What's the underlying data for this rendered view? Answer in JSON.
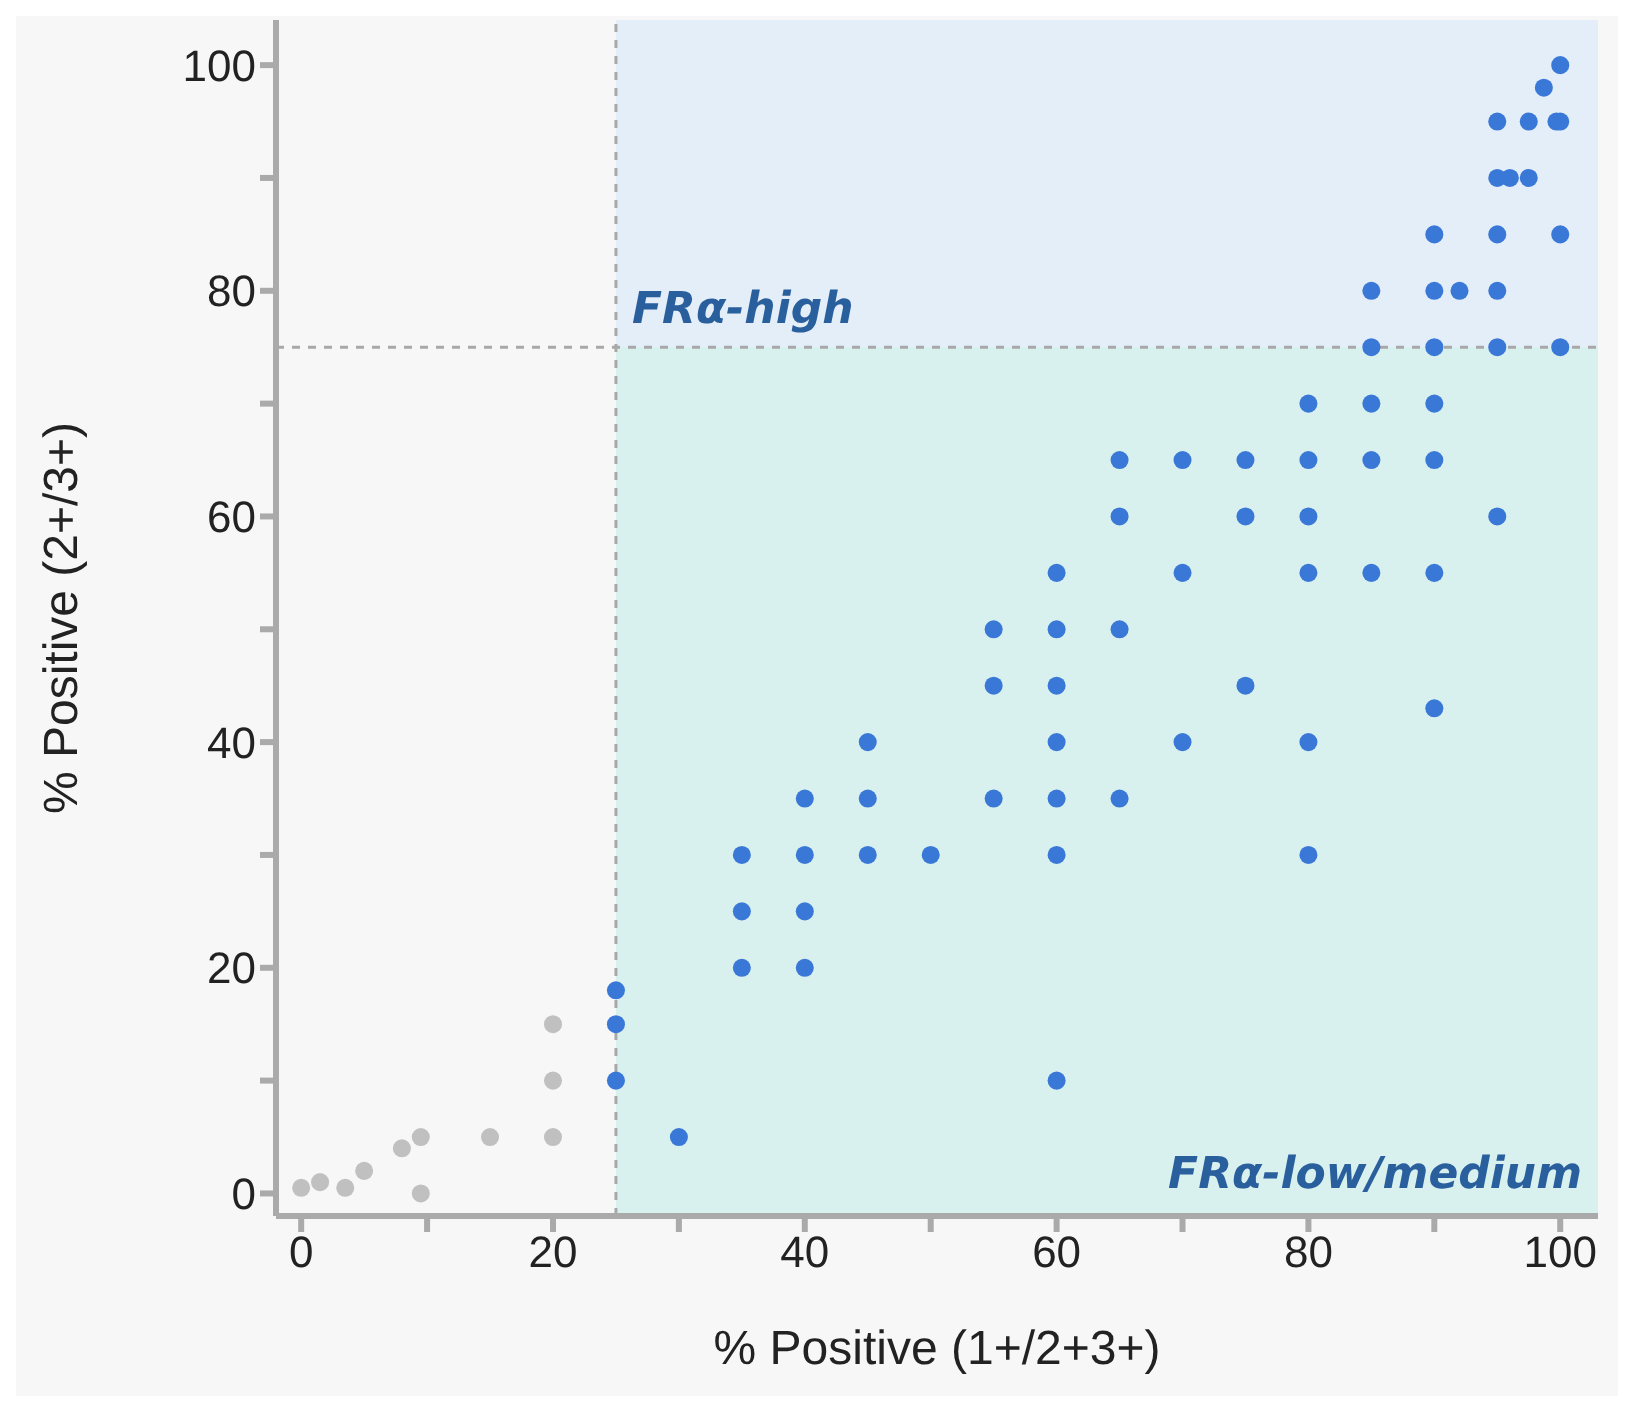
{
  "chart_data": {
    "type": "scatter",
    "xlabel": "% Positive (1+/2+3+)",
    "ylabel": "% Positive (2+/3+)",
    "xlim": [
      -2,
      103
    ],
    "ylim": [
      -2,
      104
    ],
    "xticks": [
      0,
      {
        "value": 10,
        "label": null
      },
      20,
      {
        "value": 30,
        "label": null
      },
      40,
      {
        "value": 50,
        "label": null
      },
      60,
      {
        "value": 70,
        "label": null
      },
      80,
      {
        "value": 90,
        "label": null
      },
      100
    ],
    "yticks": [
      0,
      {
        "value": 10,
        "label": null
      },
      20,
      {
        "value": 30,
        "label": null
      },
      40,
      {
        "value": 50,
        "label": null
      },
      60,
      {
        "value": 70,
        "label": null
      },
      80,
      {
        "value": 90,
        "label": null
      },
      100
    ],
    "grid": false,
    "legend": false,
    "marker": "circle",
    "series": [
      {
        "color": "#c0c0c0",
        "x": [
          0,
          1.5,
          3.5,
          5,
          8,
          9.5,
          9.5,
          15,
          20,
          20,
          20
        ],
        "values": [
          0.5,
          1,
          0.5,
          2,
          4,
          5,
          0,
          5,
          5,
          10,
          15
        ]
      },
      {
        "color": "#3a78d8",
        "x": [
          25,
          25,
          25,
          30,
          35,
          35,
          35,
          40,
          40,
          40,
          40,
          45,
          45,
          45,
          50,
          55,
          55,
          55,
          60,
          60,
          60,
          60,
          60,
          60,
          60,
          65,
          65,
          65,
          65,
          70,
          70,
          70,
          75,
          75,
          75,
          80,
          80,
          80,
          80,
          80,
          80,
          85,
          85,
          85,
          85,
          85,
          90,
          90,
          90,
          90,
          90,
          90,
          90,
          92,
          95,
          95,
          95,
          95,
          95,
          95,
          96,
          97.5,
          97.5,
          99.7,
          98.7,
          100,
          100,
          100,
          100
        ],
        "values": [
          10,
          15,
          18,
          5,
          20,
          25,
          30,
          20,
          25,
          30,
          35,
          30,
          35,
          40,
          30,
          35,
          45,
          50,
          10,
          30,
          35,
          40,
          45,
          50,
          55,
          35,
          50,
          60,
          65,
          40,
          55,
          65,
          45,
          60,
          65,
          30,
          40,
          55,
          60,
          65,
          70,
          55,
          65,
          70,
          75,
          80,
          43,
          55,
          65,
          70,
          75,
          80,
          85,
          80,
          60,
          75,
          80,
          85,
          90,
          95,
          90,
          90,
          95,
          95,
          98,
          100,
          95,
          85,
          75
        ]
      }
    ],
    "ref_lines": [
      {
        "axis": "x",
        "value": 25,
        "color": "#a8a8a8",
        "line_style": "dashed"
      },
      {
        "axis": "y",
        "value": 75,
        "color": "#a8a8a8",
        "line_style": "dashed"
      }
    ],
    "bands": [
      {
        "axis": "x",
        "from": 25,
        "to": 103,
        "label": "FRα-low/medium",
        "color": "#d9f1ee"
      },
      {
        "axis": "y",
        "from": 75,
        "to": 104,
        "label": "FRα-high",
        "color": "#e4eef8"
      }
    ]
  }
}
